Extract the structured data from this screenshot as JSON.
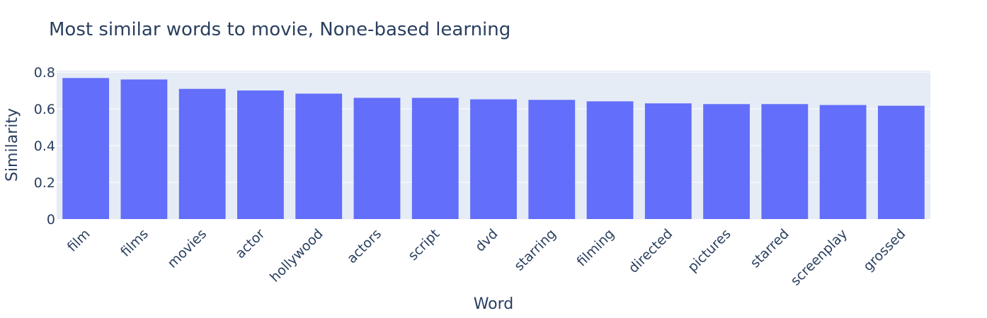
{
  "chart_data": {
    "type": "bar",
    "title": "Most similar words to movie, None-based learning",
    "xlabel": "Word",
    "ylabel": "Similarity",
    "categories": [
      "film",
      "films",
      "movies",
      "actor",
      "hollywood",
      "actors",
      "script",
      "dvd",
      "starring",
      "filming",
      "directed",
      "pictures",
      "starred",
      "screenplay",
      "grossed"
    ],
    "values": [
      0.768,
      0.76,
      0.709,
      0.7,
      0.683,
      0.66,
      0.66,
      0.652,
      0.649,
      0.641,
      0.63,
      0.626,
      0.626,
      0.621,
      0.617
    ],
    "ylim": [
      0,
      0.808
    ],
    "yticks": [
      0,
      0.2,
      0.4,
      0.6,
      0.8
    ],
    "ytick_labels": [
      "0",
      "0.2",
      "0.4",
      "0.6",
      "0.8"
    ],
    "grid": true,
    "colors": {
      "bar": "#636efa",
      "plot_bg": "#e5ecf6",
      "grid": "#ffffff",
      "text": "#2a3f5f"
    }
  }
}
